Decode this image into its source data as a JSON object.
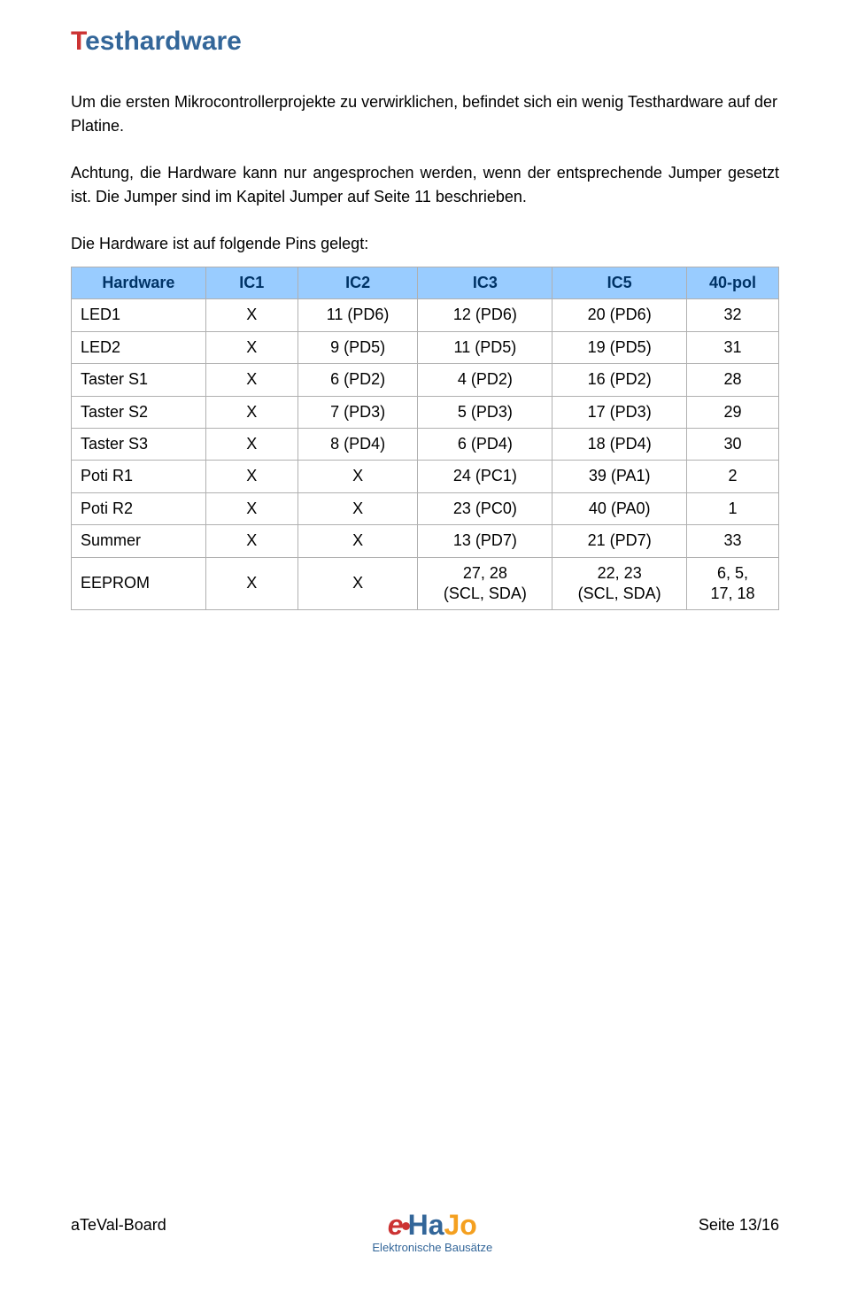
{
  "title_first": "T",
  "title_rest": "esthardware",
  "para1": "Um die ersten Mikrocontrollerprojekte zu verwirklichen, befindet sich ein wenig Testhardware auf der Platine.",
  "para2": "Achtung, die Hardware kann nur angesprochen werden, wenn der entsprechende Jumper gesetzt ist. Die Jumper sind im Kapitel Jumper auf Seite 11 beschrieben.",
  "para3": "Die Hardware ist auf folgende Pins gelegt:",
  "table": {
    "columns": [
      "Hardware",
      "IC1",
      "IC2",
      "IC3",
      "IC5",
      "40-pol"
    ],
    "col_widths_pct": [
      19,
      13,
      17,
      19,
      19,
      13
    ],
    "header_bg": "#99ccff",
    "header_fg": "#003366",
    "border_color": "#b0b0b0",
    "rows": [
      [
        "LED1",
        "X",
        "11 (PD6)",
        "12 (PD6)",
        "20 (PD6)",
        "32"
      ],
      [
        "LED2",
        "X",
        "9 (PD5)",
        "11 (PD5)",
        "19 (PD5)",
        "31"
      ],
      [
        "Taster S1",
        "X",
        "6 (PD2)",
        "4 (PD2)",
        "16 (PD2)",
        "28"
      ],
      [
        "Taster S2",
        "X",
        "7 (PD3)",
        "5 (PD3)",
        "17 (PD3)",
        "29"
      ],
      [
        "Taster S3",
        "X",
        "8 (PD4)",
        "6 (PD4)",
        "18 (PD4)",
        "30"
      ],
      [
        "Poti R1",
        "X",
        "X",
        "24 (PC1)",
        "39 (PA1)",
        "2"
      ],
      [
        "Poti R2",
        "X",
        "X",
        "23 (PC0)",
        "40 (PA0)",
        "1"
      ],
      [
        "Summer",
        "X",
        "X",
        "13 (PD7)",
        "21 (PD7)",
        "33"
      ],
      [
        "EEPROM",
        "X",
        "X",
        "27, 28\n(SCL, SDA)",
        "22, 23\n(SCL, SDA)",
        "6, 5,\n17, 18"
      ]
    ]
  },
  "footer": {
    "left": "aTeVal-Board",
    "right": "Seite 13/16",
    "logo_e": "e",
    "logo_ha": "Ha",
    "logo_jo": "Jo",
    "logo_sub": "Elektronische Bausätze"
  },
  "colors": {
    "title_first": "#cc3333",
    "title_rest": "#336699",
    "body_text": "#000000",
    "logo_e": "#cc3333",
    "logo_ha": "#336699",
    "logo_jo": "#f4a020"
  }
}
